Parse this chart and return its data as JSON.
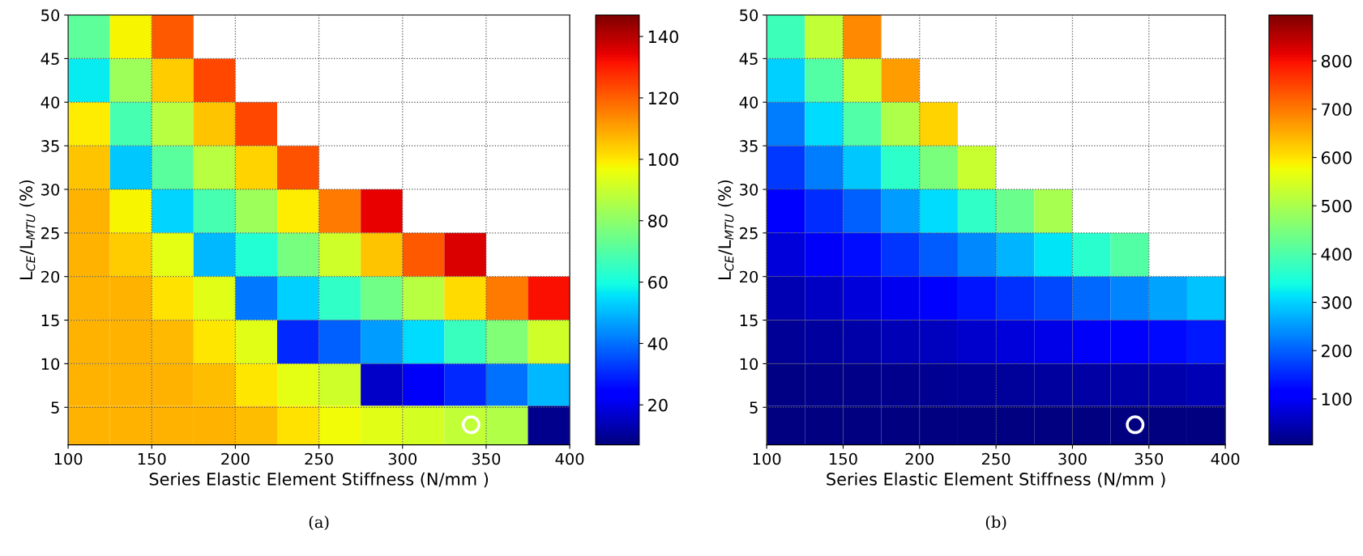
{
  "chart_data": [
    {
      "type": "heatmap",
      "xlabel": "Series Elastic Element Stiffness (N/mm )",
      "ylabel": "L$_{CE}$/L$_{MTU}$ (%)",
      "annotations": [
        "(a)"
      ],
      "x": [
        112.5,
        137.5,
        162.5,
        187.5,
        212.5,
        237.5,
        262.5,
        287.5,
        312.5,
        337.5,
        362.5,
        387.5
      ],
      "y": [
        47.5,
        42.5,
        37.5,
        32.5,
        27.5,
        22.5,
        17.5,
        12.5,
        7.5,
        2.85
      ],
      "xlim": [
        100,
        400
      ],
      "xticks": [
        100,
        150,
        200,
        250,
        300,
        350,
        400
      ],
      "ylim": [
        0.7,
        50
      ],
      "yticks": [
        5,
        10,
        15,
        20,
        25,
        30,
        35,
        40,
        45,
        50
      ],
      "clim": [
        7,
        147
      ],
      "cticks": [
        20,
        40,
        60,
        80,
        100,
        120,
        140
      ],
      "grid": true,
      "cells": [
        [
          72,
          98,
          121,
          null,
          null,
          null,
          null,
          null,
          null,
          null,
          null,
          null
        ],
        [
          57,
          83,
          104,
          124,
          null,
          null,
          null,
          null,
          null,
          null,
          null,
          null
        ],
        [
          99,
          68,
          87,
          105,
          124,
          null,
          null,
          null,
          null,
          null,
          null,
          null
        ],
        [
          105,
          52,
          71,
          87,
          103,
          122,
          null,
          null,
          null,
          null,
          null,
          null
        ],
        [
          108,
          98,
          54,
          68,
          83,
          99,
          116,
          134,
          null,
          null,
          null,
          null
        ],
        [
          108,
          104,
          95,
          50,
          62,
          76,
          91,
          105,
          121,
          136,
          null,
          null
        ],
        [
          108,
          108,
          101,
          94,
          41,
          53,
          64,
          75,
          87,
          102,
          116,
          132
        ],
        [
          108,
          108,
          107,
          100,
          94,
          30,
          38,
          46,
          55,
          66,
          78,
          91
        ],
        [
          108,
          108,
          108,
          106,
          100,
          95,
          91,
          16,
          22,
          30,
          40,
          50
        ],
        [
          108,
          108,
          108,
          108,
          106,
          101,
          97,
          94,
          92,
          89,
          86,
          9
        ]
      ],
      "series": [
        {
          "type": "scatter",
          "x": [
            341
          ],
          "values": [
            3
          ],
          "color": "#ffffff",
          "marker": "circle"
        }
      ]
    },
    {
      "type": "heatmap",
      "xlabel": "Series Elastic Element Stiffness (N/mm )",
      "ylabel": "L$_{CE}$/L$_{MTU}$ (%)",
      "annotations": [
        "(b)"
      ],
      "x": [
        112.5,
        137.5,
        162.5,
        187.5,
        212.5,
        237.5,
        262.5,
        287.5,
        312.5,
        337.5,
        362.5,
        387.5
      ],
      "y": [
        47.5,
        42.5,
        37.5,
        32.5,
        27.5,
        22.5,
        17.5,
        12.5,
        7.5,
        2.85
      ],
      "xlim": [
        100,
        400
      ],
      "xticks": [
        100,
        150,
        200,
        250,
        300,
        350,
        400
      ],
      "ylim": [
        0.7,
        50
      ],
      "yticks": [
        5,
        10,
        15,
        20,
        25,
        30,
        35,
        40,
        45,
        50
      ],
      "clim": [
        5,
        895
      ],
      "cticks": [
        100,
        200,
        300,
        400,
        500,
        600,
        700,
        800
      ],
      "grid": true,
      "cells": [
        [
          381,
          524,
          683,
          null,
          null,
          null,
          null,
          null,
          null,
          null,
          null,
          null
        ],
        [
          298,
          408,
          532,
          668,
          null,
          null,
          null,
          null,
          null,
          null,
          null,
          null
        ],
        [
          226,
          309,
          402,
          505,
          615,
          null,
          null,
          null,
          null,
          null,
          null,
          null
        ],
        [
          165,
          225,
          293,
          366,
          447,
          533,
          null,
          null,
          null,
          null,
          null,
          null
        ],
        [
          115,
          156,
          202,
          253,
          308,
          367,
          430,
          496,
          null,
          null,
          null,
          null
        ],
        [
          75,
          101,
          130,
          162,
          197,
          235,
          275,
          317,
          362,
          408,
          null,
          null
        ],
        [
          44,
          59,
          76,
          94,
          114,
          135,
          158,
          182,
          207,
          233,
          261,
          289
        ],
        [
          23,
          30,
          38,
          47,
          56,
          66,
          77,
          88,
          100,
          112,
          125,
          139
        ],
        [
          11,
          13,
          15,
          18,
          21,
          24,
          27,
          31,
          35,
          39,
          43,
          47
        ],
        [
          5,
          6,
          6,
          6,
          6,
          7,
          7,
          7,
          7,
          8,
          8,
          8
        ]
      ],
      "series": [
        {
          "type": "scatter",
          "x": [
            341
          ],
          "values": [
            3
          ],
          "color": "#ffffff",
          "marker": "circle"
        }
      ]
    }
  ]
}
